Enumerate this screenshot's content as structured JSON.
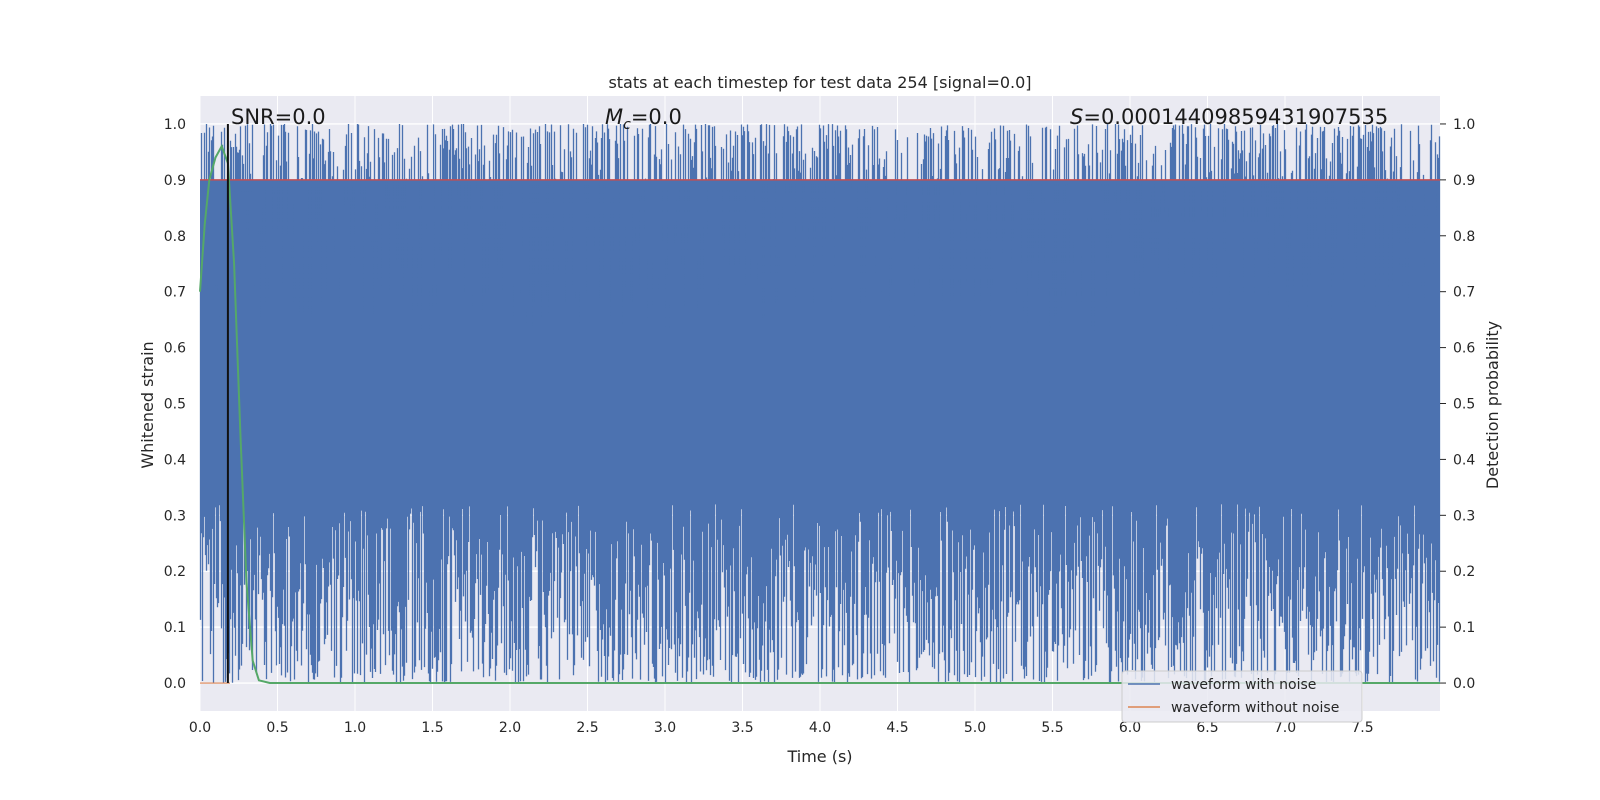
{
  "chart_data": {
    "type": "line",
    "title": "stats at each timestep for test data 254 [signal=0.0]",
    "xlabel": "Time (s)",
    "ylabel_left": "Whitened strain",
    "ylabel_right": "Detection probability",
    "xlim": [
      0.0,
      8.0
    ],
    "ylim": [
      -0.05,
      1.05
    ],
    "x_ticks": [
      "0.0",
      "0.5",
      "1.0",
      "1.5",
      "2.0",
      "2.5",
      "3.0",
      "3.5",
      "4.0",
      "4.5",
      "5.0",
      "5.5",
      "6.0",
      "6.5",
      "7.0",
      "7.5"
    ],
    "y_ticks": [
      "0.0",
      "0.1",
      "0.2",
      "0.3",
      "0.4",
      "0.5",
      "0.6",
      "0.7",
      "0.8",
      "0.9",
      "1.0"
    ],
    "grid": true,
    "background": "#eaeaf2",
    "annotations": {
      "snr": "SNR=0.0",
      "mc_symbol": "M",
      "mc_sub": "c",
      "mc_value": "=0.0",
      "s_symbol": "S",
      "s_value": "=0.00014409859431907535"
    },
    "threshold": 0.9,
    "marker_time": 0.18,
    "series": [
      {
        "name": "waveform with noise",
        "color": "#4c72b0",
        "kind": "noise-band",
        "lower_range": [
          0.0,
          0.32
        ],
        "upper_range": [
          0.63,
          1.0
        ]
      },
      {
        "name": "waveform without noise",
        "color": "#dd8452",
        "kind": "flat",
        "value": 0.0
      },
      {
        "color": "#55a868",
        "kind": "detection-probability",
        "x": [
          0.0,
          0.03,
          0.06,
          0.1,
          0.14,
          0.18,
          0.22,
          0.26,
          0.3,
          0.34,
          0.38,
          0.45,
          0.6,
          1.0,
          2.0,
          4.0,
          6.0,
          8.0
        ],
        "y": [
          0.7,
          0.82,
          0.9,
          0.94,
          0.96,
          0.93,
          0.75,
          0.45,
          0.18,
          0.04,
          0.005,
          0.0,
          0.0,
          0.0,
          0.0,
          0.0,
          0.0,
          0.0
        ]
      }
    ],
    "legend": {
      "position": "lower-right",
      "entries": [
        "waveform with noise",
        "waveform without noise"
      ]
    }
  }
}
